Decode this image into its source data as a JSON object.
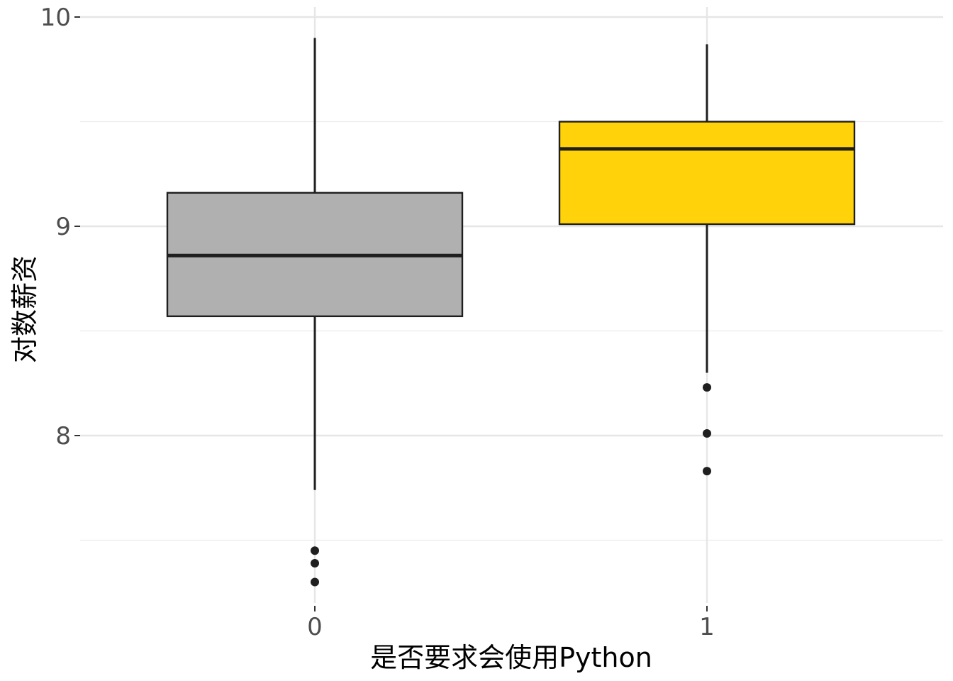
{
  "chart_data": {
    "type": "boxplot",
    "title": "",
    "xlabel": "是否要求会使用Python",
    "ylabel": "对数薪资",
    "categories": [
      "0",
      "1"
    ],
    "ylim": [
      7.7,
      10
    ],
    "yticks": [
      8,
      9,
      10
    ],
    "yticks_minor": [
      7.5,
      8.5,
      9.5
    ],
    "ytick_labels": [
      "8",
      "9",
      "10"
    ],
    "grid": true,
    "legend": "none",
    "boxes": [
      {
        "category": "0",
        "fill": "#b0b0b0",
        "whisker_low": 7.74,
        "q1": 8.57,
        "median": 8.86,
        "q3": 9.16,
        "whisker_high": 9.9,
        "outliers": [
          7.45,
          7.39,
          7.3
        ]
      },
      {
        "category": "1",
        "fill": "#ffd20a",
        "whisker_low": 8.3,
        "q1": 9.01,
        "median": 9.37,
        "q3": 9.5,
        "whisker_high": 9.87,
        "outliers": [
          8.23,
          8.01,
          7.83
        ]
      }
    ]
  }
}
